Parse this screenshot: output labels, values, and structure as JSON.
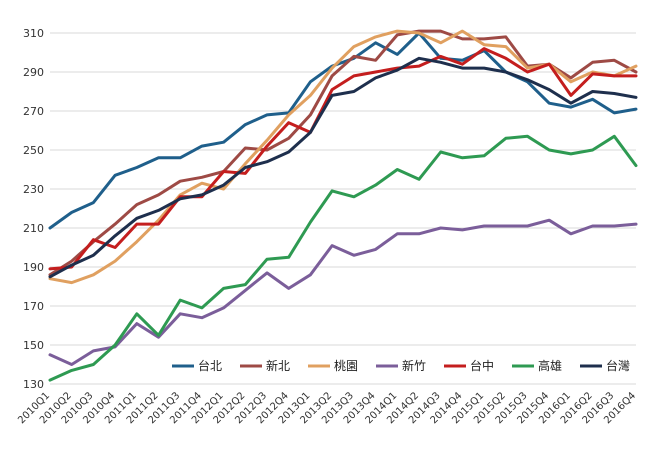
{
  "chart_data": {
    "type": "line",
    "title": "",
    "xlabel": "",
    "ylabel": "",
    "ylim": [
      130,
      310
    ],
    "yticks": [
      130,
      150,
      170,
      190,
      210,
      230,
      250,
      270,
      290,
      310
    ],
    "grid": "horizontal",
    "legend_position": "inside-bottom",
    "categories": [
      "2010Q1",
      "2010Q2",
      "2010Q3",
      "2010Q4",
      "2011Q1",
      "2011Q2",
      "2011Q3",
      "2011Q4",
      "2012Q1",
      "2012Q2",
      "2012Q3",
      "2012Q4",
      "2013Q1",
      "2013Q2",
      "2013Q3",
      "2013Q4",
      "2014Q1",
      "2014Q2",
      "2014Q3",
      "2014Q4",
      "2015Q1",
      "2015Q2",
      "2015Q3",
      "2015Q4",
      "2016Q1",
      "2016Q2",
      "2016Q3",
      "2016Q4"
    ],
    "series": [
      {
        "name": "台北",
        "color": "#1f5f8b",
        "values": [
          210,
          218,
          223,
          237,
          241,
          246,
          246,
          252,
          254,
          263,
          268,
          269,
          285,
          293,
          297,
          305,
          299,
          310,
          297,
          296,
          301,
          290,
          285,
          274,
          272,
          276,
          269,
          271
        ]
      },
      {
        "name": "新北",
        "color": "#9e4a45",
        "values": [
          186,
          193,
          203,
          212,
          222,
          227,
          234,
          236,
          239,
          251,
          250,
          256,
          268,
          288,
          298,
          296,
          309,
          311,
          311,
          307,
          307,
          308,
          293,
          294,
          287,
          295,
          296,
          290
        ]
      },
      {
        "name": "桃園",
        "color": "#e0a060",
        "values": [
          184,
          182,
          186,
          193,
          203,
          214,
          227,
          233,
          230,
          243,
          255,
          268,
          278,
          292,
          303,
          308,
          311,
          310,
          305,
          311,
          304,
          303,
          292,
          294,
          285,
          290,
          288,
          293
        ]
      },
      {
        "name": "新竹",
        "color": "#7b5e9a",
        "values": [
          145,
          140,
          147,
          149,
          161,
          154,
          166,
          164,
          169,
          178,
          187,
          179,
          186,
          201,
          196,
          199,
          207,
          207,
          210,
          209,
          211,
          211,
          211,
          214,
          207,
          211,
          211,
          212
        ]
      },
      {
        "name": "台中",
        "color": "#c41e1e",
        "values": [
          189,
          190,
          204,
          200,
          212,
          212,
          226,
          226,
          239,
          238,
          252,
          264,
          259,
          281,
          288,
          290,
          292,
          293,
          298,
          294,
          302,
          297,
          290,
          294,
          278,
          289,
          288,
          288
        ]
      },
      {
        "name": "高雄",
        "color": "#2e9a52",
        "values": [
          132,
          137,
          140,
          150,
          166,
          155,
          173,
          169,
          179,
          181,
          194,
          195,
          213,
          229,
          226,
          232,
          240,
          235,
          249,
          246,
          247,
          256,
          257,
          250,
          248,
          250,
          257,
          242
        ]
      },
      {
        "name": "台灣",
        "color": "#1e2f4d",
        "values": [
          185,
          191,
          196,
          206,
          215,
          219,
          225,
          227,
          232,
          241,
          244,
          249,
          259,
          278,
          280,
          287,
          291,
          297,
          295,
          292,
          292,
          290,
          286,
          281,
          274,
          280,
          279,
          277
        ]
      }
    ]
  }
}
